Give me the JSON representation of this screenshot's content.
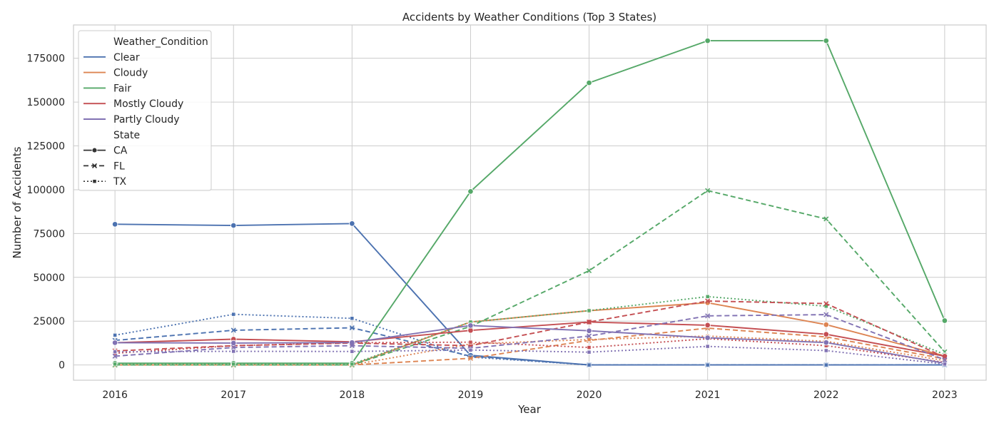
{
  "chart_data": {
    "type": "line",
    "title": "Accidents by Weather Conditions (Top 3 States)",
    "xlabel": "Year",
    "ylabel": "Number of Accidents",
    "x": [
      2016,
      2017,
      2018,
      2019,
      2020,
      2021,
      2022,
      2023
    ],
    "xlim": [
      2015.65,
      2023.35
    ],
    "ylim": [
      -8700,
      194000
    ],
    "yticks": [
      0,
      25000,
      50000,
      75000,
      100000,
      125000,
      150000,
      175000
    ],
    "ytick_labels": [
      "0",
      "25000",
      "50000",
      "75000",
      "100000",
      "125000",
      "150000",
      "175000"
    ],
    "grid": true,
    "legend": {
      "placement": "top-left",
      "hue_title": "Weather_Condition",
      "style_title": "State",
      "hue": [
        {
          "name": "Clear",
          "color": "#4c72b0"
        },
        {
          "name": "Cloudy",
          "color": "#dd8452"
        },
        {
          "name": "Fair",
          "color": "#55a868"
        },
        {
          "name": "Mostly Cloudy",
          "color": "#c44e52"
        },
        {
          "name": "Partly Cloudy",
          "color": "#8172b3"
        }
      ],
      "style": [
        {
          "name": "CA",
          "dash": "solid",
          "marker": "circle"
        },
        {
          "name": "FL",
          "dash": "dashed",
          "marker": "x"
        },
        {
          "name": "TX",
          "dash": "dotted",
          "marker": "square"
        }
      ]
    },
    "series": [
      {
        "condition": "Clear",
        "state": "CA",
        "values": [
          80300,
          79600,
          80700,
          5500,
          0,
          0,
          0,
          0
        ]
      },
      {
        "condition": "Clear",
        "state": "FL",
        "values": [
          14000,
          19800,
          21200,
          5000,
          0,
          0,
          0,
          0
        ]
      },
      {
        "condition": "Clear",
        "state": "TX",
        "values": [
          17000,
          28900,
          26600,
          4500,
          0,
          0,
          0,
          0
        ]
      },
      {
        "condition": "Cloudy",
        "state": "CA",
        "values": [
          0,
          0,
          0,
          24500,
          31000,
          35500,
          23000,
          5200
        ]
      },
      {
        "condition": "Cloudy",
        "state": "FL",
        "values": [
          0,
          0,
          0,
          3800,
          14000,
          21000,
          16000,
          3500
        ]
      },
      {
        "condition": "Cloudy",
        "state": "TX",
        "values": [
          0,
          0,
          0,
          12000,
          14500,
          16500,
          13500,
          2500
        ]
      },
      {
        "condition": "Fair",
        "state": "CA",
        "values": [
          1000,
          1000,
          1000,
          99000,
          161000,
          185000,
          185000,
          25300
        ]
      },
      {
        "condition": "Fair",
        "state": "FL",
        "values": [
          0,
          0,
          0,
          22000,
          53800,
          99500,
          83300,
          7500
        ]
      },
      {
        "condition": "Fair",
        "state": "TX",
        "values": [
          500,
          500,
          500,
          24500,
          31000,
          39000,
          33500,
          6000
        ]
      },
      {
        "condition": "Mostly Cloudy",
        "state": "CA",
        "values": [
          12700,
          14700,
          13200,
          19700,
          24500,
          22700,
          17500,
          5000
        ]
      },
      {
        "condition": "Mostly Cloudy",
        "state": "FL",
        "values": [
          8000,
          11000,
          12500,
          11000,
          24500,
          36500,
          35000,
          4500
        ]
      },
      {
        "condition": "Mostly Cloudy",
        "state": "TX",
        "values": [
          6700,
          11000,
          12700,
          13000,
          10000,
          15000,
          11000,
          1500
        ]
      },
      {
        "condition": "Partly Cloudy",
        "state": "CA",
        "values": [
          12700,
          12500,
          12800,
          22500,
          19500,
          15500,
          12800,
          1000
        ]
      },
      {
        "condition": "Partly Cloudy",
        "state": "FL",
        "values": [
          5000,
          10000,
          11000,
          9500,
          16500,
          28000,
          28700,
          3000
        ]
      },
      {
        "condition": "Partly Cloudy",
        "state": "TX",
        "values": [
          7500,
          7800,
          7700,
          8500,
          7300,
          10600,
          8200,
          500
        ]
      }
    ]
  }
}
